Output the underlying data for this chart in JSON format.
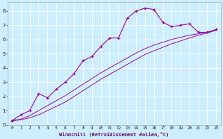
{
  "title": "",
  "xlabel": "Windchill (Refroidissement éolien,°C)",
  "bg_color": "#cceeff",
  "grid_color": "#ffffff",
  "line_color": "#990099",
  "xlim": [
    -0.5,
    23.5
  ],
  "ylim": [
    0,
    8.6
  ],
  "xticks": [
    0,
    1,
    2,
    3,
    4,
    5,
    6,
    7,
    8,
    9,
    10,
    11,
    12,
    13,
    14,
    15,
    16,
    17,
    18,
    19,
    20,
    21,
    22,
    23
  ],
  "yticks": [
    0,
    1,
    2,
    3,
    4,
    5,
    6,
    7,
    8
  ],
  "line1_x": [
    0,
    1,
    2,
    3,
    4,
    5,
    6,
    7,
    8,
    9,
    10,
    11,
    12,
    13,
    14,
    15,
    16,
    17,
    18,
    19,
    20,
    21,
    22,
    23
  ],
  "line1_y": [
    0.3,
    0.7,
    1.0,
    2.2,
    1.9,
    2.5,
    3.0,
    3.6,
    4.5,
    4.8,
    5.5,
    6.1,
    6.1,
    7.5,
    8.0,
    8.2,
    8.1,
    7.2,
    6.9,
    7.0,
    7.1,
    6.5,
    6.5,
    6.7
  ],
  "line2_x": [
    0,
    1,
    2,
    3,
    4,
    5,
    6,
    7,
    8,
    9,
    10,
    11,
    12,
    13,
    14,
    15,
    16,
    17,
    18,
    19,
    20,
    21,
    22,
    23
  ],
  "line2_y": [
    0.3,
    0.35,
    0.5,
    0.7,
    1.0,
    1.3,
    1.6,
    2.0,
    2.4,
    2.8,
    3.2,
    3.55,
    3.9,
    4.25,
    4.6,
    4.95,
    5.2,
    5.45,
    5.7,
    5.9,
    6.1,
    6.3,
    6.45,
    6.65
  ],
  "line3_x": [
    0,
    1,
    2,
    3,
    4,
    5,
    6,
    7,
    8,
    9,
    10,
    11,
    12,
    13,
    14,
    15,
    16,
    17,
    18,
    19,
    20,
    21,
    22,
    23
  ],
  "line3_y": [
    0.3,
    0.4,
    0.65,
    1.0,
    1.35,
    1.7,
    2.05,
    2.45,
    2.85,
    3.25,
    3.65,
    4.0,
    4.35,
    4.7,
    5.05,
    5.35,
    5.6,
    5.8,
    6.0,
    6.15,
    6.3,
    6.4,
    6.52,
    6.65
  ]
}
